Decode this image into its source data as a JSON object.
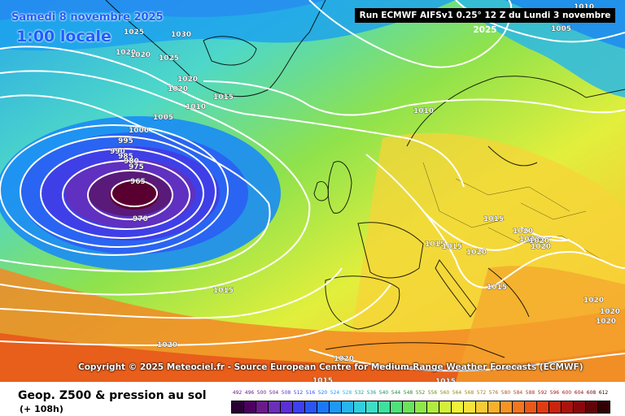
{
  "header": {
    "date": "Samedi 8 novembre 2025",
    "time": "1:00 locale",
    "run": "Run ECMWF AIFSv1 0.25° 12 Z du Lundi 3 novembre 2025"
  },
  "copyright": "Copyright © 2025 Meteociel.fr - Source European Centre for Medium-Range Weather Forecasts (ECMWF)",
  "footer": {
    "title": "Geop. Z500 & pression au sol",
    "lead": "(+ 108h)"
  },
  "isobar_labels": [
    "1025",
    "1030",
    "1025",
    "1020",
    "1020",
    "1020",
    "1020",
    "1015",
    "1010",
    "1005",
    "1000",
    "995",
    "990",
    "985",
    "980",
    "975",
    "965",
    "970",
    "1015",
    "1020",
    "1015",
    "1005",
    "1010",
    "1015",
    "1010",
    "1015",
    "1020",
    "1015",
    "1020",
    "1020",
    "1020",
    "1020",
    "1020",
    "1020",
    "1020",
    "1015",
    "1015",
    "1020"
  ],
  "colorbar": {
    "labels": [
      "492",
      "496",
      "500",
      "504",
      "508",
      "512",
      "516",
      "520",
      "524",
      "528",
      "532",
      "536",
      "540",
      "544",
      "548",
      "552",
      "556",
      "560",
      "564",
      "568",
      "572",
      "576",
      "580",
      "584",
      "588",
      "592",
      "596",
      "600",
      "604",
      "608",
      "612"
    ],
    "colors": [
      "#2a0034",
      "#4b0060",
      "#6a1a8a",
      "#6d2fb8",
      "#5a2fd8",
      "#3d3ff0",
      "#2a55f5",
      "#1a78f8",
      "#1e98f2",
      "#26b5ec",
      "#33cde0",
      "#3fdcc6",
      "#3fe09e",
      "#4ee07a",
      "#6be25c",
      "#8fe84a",
      "#b0ec3f",
      "#d2f03a",
      "#eef23a",
      "#f6e43a",
      "#f7cb35",
      "#f7b02e",
      "#f59326",
      "#f2761f",
      "#ea5818",
      "#e03c12",
      "#c8240e",
      "#a8140c",
      "#88080a",
      "#600408",
      "#300004"
    ],
    "label_colors": [
      "#6a1a8a",
      "#6a1a8a",
      "#6a1a8a",
      "#6a1a8a",
      "#5a2fd8",
      "#3d3ff0",
      "#2a55f5",
      "#1a78f8",
      "#1e98f2",
      "#26b5ec",
      "#1a9a9a",
      "#1a9a8a",
      "#1a8a5a",
      "#1a8a3a",
      "#2a8a2a",
      "#4a8a1a",
      "#6a8a1a",
      "#8a8a1a",
      "#8a8a1a",
      "#9a8a1a",
      "#a87a1a",
      "#a86a1a",
      "#a8561a",
      "#a8461a",
      "#a8361a",
      "#a8261a",
      "#a8160e",
      "#a8140c",
      "#88080a",
      "#600408",
      "#300004"
    ]
  }
}
